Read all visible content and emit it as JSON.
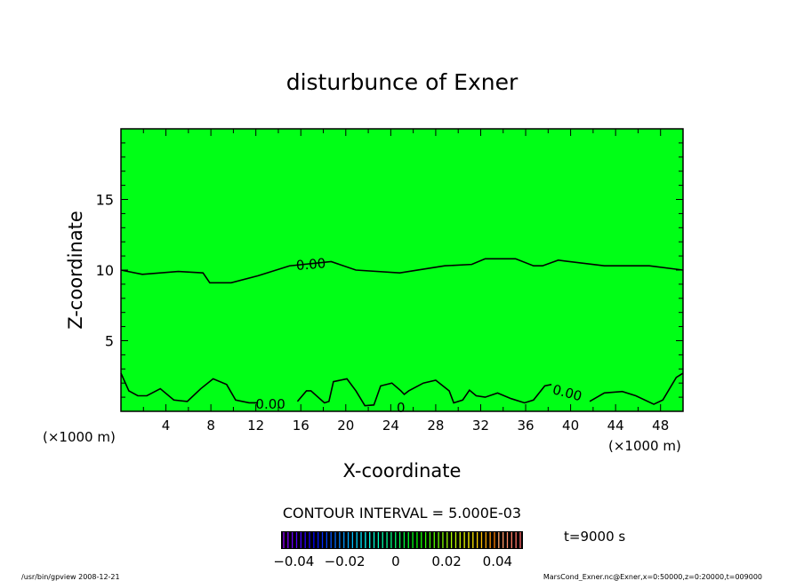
{
  "chart_data": {
    "type": "contour",
    "title": "disturbunce of Exner",
    "xlabel": "X-coordinate",
    "ylabel": "Z-coordinate",
    "x_unit_label": "(×1000 m)",
    "x_unit_label_left": "(×1000 m)",
    "xlim": [
      0,
      50
    ],
    "ylim": [
      0,
      20
    ],
    "xticks": [
      4,
      8,
      12,
      16,
      20,
      24,
      28,
      32,
      36,
      40,
      44,
      48
    ],
    "xtick_labels": [
      "4",
      "8",
      "12",
      "16",
      "20",
      "24",
      "28",
      "32",
      "36",
      "40",
      "44",
      "48"
    ],
    "yticks": [
      5,
      10,
      15
    ],
    "ytick_labels": [
      "5",
      "10",
      "15"
    ],
    "fill_color": "#00ff16",
    "contour_interval_text": "CONTOUR INTERVAL = 5.000E-03",
    "time_text": "t=9000 s",
    "contours": [
      {
        "level": 0.0,
        "points": [
          [
            0,
            10.0
          ],
          [
            1.9,
            9.7
          ],
          [
            5.1,
            9.9
          ],
          [
            7.3,
            9.8
          ],
          [
            7.9,
            9.1
          ],
          [
            9.8,
            9.1
          ],
          [
            12.2,
            9.6
          ],
          [
            15,
            10.3
          ],
          [
            18.7,
            10.6
          ],
          [
            20.9,
            10.0
          ],
          [
            24.8,
            9.8
          ],
          [
            28.8,
            10.3
          ],
          [
            31.2,
            10.4
          ],
          [
            32.4,
            10.8
          ],
          [
            35.1,
            10.8
          ],
          [
            36.7,
            10.3
          ],
          [
            37.5,
            10.3
          ],
          [
            38.9,
            10.7
          ],
          [
            43,
            10.3
          ],
          [
            47,
            10.3
          ],
          [
            50,
            10.0
          ]
        ]
      },
      {
        "level": 0.0,
        "points": [
          [
            0,
            2.7
          ],
          [
            0.7,
            1.45
          ],
          [
            1.5,
            1.1
          ],
          [
            2.3,
            1.1
          ],
          [
            3.5,
            1.6
          ],
          [
            4.7,
            0.8
          ],
          [
            5.9,
            0.7
          ],
          [
            7.1,
            1.6
          ],
          [
            8.2,
            2.3
          ],
          [
            9.4,
            1.9
          ],
          [
            10.2,
            0.8
          ],
          [
            11.4,
            0.6
          ],
          [
            12.2,
            0.6
          ]
        ]
      },
      {
        "level": 0.0,
        "points": [
          [
            15.7,
            0.7
          ],
          [
            16.5,
            1.45
          ],
          [
            16.9,
            1.45
          ],
          [
            18.1,
            0.6
          ],
          [
            18.5,
            0.7
          ],
          [
            18.9,
            2.1
          ],
          [
            20.1,
            2.3
          ],
          [
            20.9,
            1.45
          ],
          [
            21.7,
            0.4
          ],
          [
            22.5,
            0.45
          ],
          [
            23.1,
            1.8
          ],
          [
            24.1,
            2.0
          ],
          [
            24.9,
            1.45
          ],
          [
            25.2,
            1.2
          ],
          [
            25.6,
            1.45
          ],
          [
            26.9,
            2.0
          ],
          [
            28,
            2.2
          ],
          [
            29.2,
            1.45
          ],
          [
            29.6,
            0.6
          ],
          [
            30.4,
            0.8
          ],
          [
            31,
            1.5
          ],
          [
            31.6,
            1.1
          ],
          [
            32.4,
            1.0
          ],
          [
            33.5,
            1.3
          ],
          [
            34.7,
            0.9
          ],
          [
            35.9,
            0.6
          ],
          [
            36.7,
            0.8
          ],
          [
            37.7,
            1.8
          ],
          [
            38.3,
            1.9
          ]
        ]
      },
      {
        "level": 0.0,
        "points": [
          [
            41.7,
            0.7
          ],
          [
            43,
            1.3
          ],
          [
            44.6,
            1.4
          ],
          [
            45.8,
            1.1
          ],
          [
            47.4,
            0.5
          ],
          [
            48.2,
            0.8
          ],
          [
            49.4,
            2.4
          ],
          [
            50,
            2.7
          ]
        ]
      }
    ],
    "contour_labels": [
      {
        "text": "0.00",
        "x": 16.9,
        "z": 10.4,
        "angle": -5
      },
      {
        "text": "0.00",
        "x": 13.3,
        "z": 0.5,
        "angle": 0
      },
      {
        "text": "0.00",
        "x": 39.7,
        "z": 1.3,
        "angle": 15
      },
      {
        "text": "0",
        "x": 24.9,
        "z": 0.25,
        "angle": 0
      }
    ],
    "colorbar": {
      "range": [
        -0.045,
        0.05
      ],
      "ticks": [
        -0.04,
        -0.02,
        0,
        0.02,
        0.04
      ],
      "tick_labels": [
        "−0.04",
        "−0.02",
        "0",
        "0.02",
        "0.04"
      ]
    }
  },
  "footer": {
    "left": "/usr/bin/gpview  2008-12-21",
    "right": "MarsCond_Exner.nc@Exner,x=0:50000,z=0:20000,t=009000"
  }
}
